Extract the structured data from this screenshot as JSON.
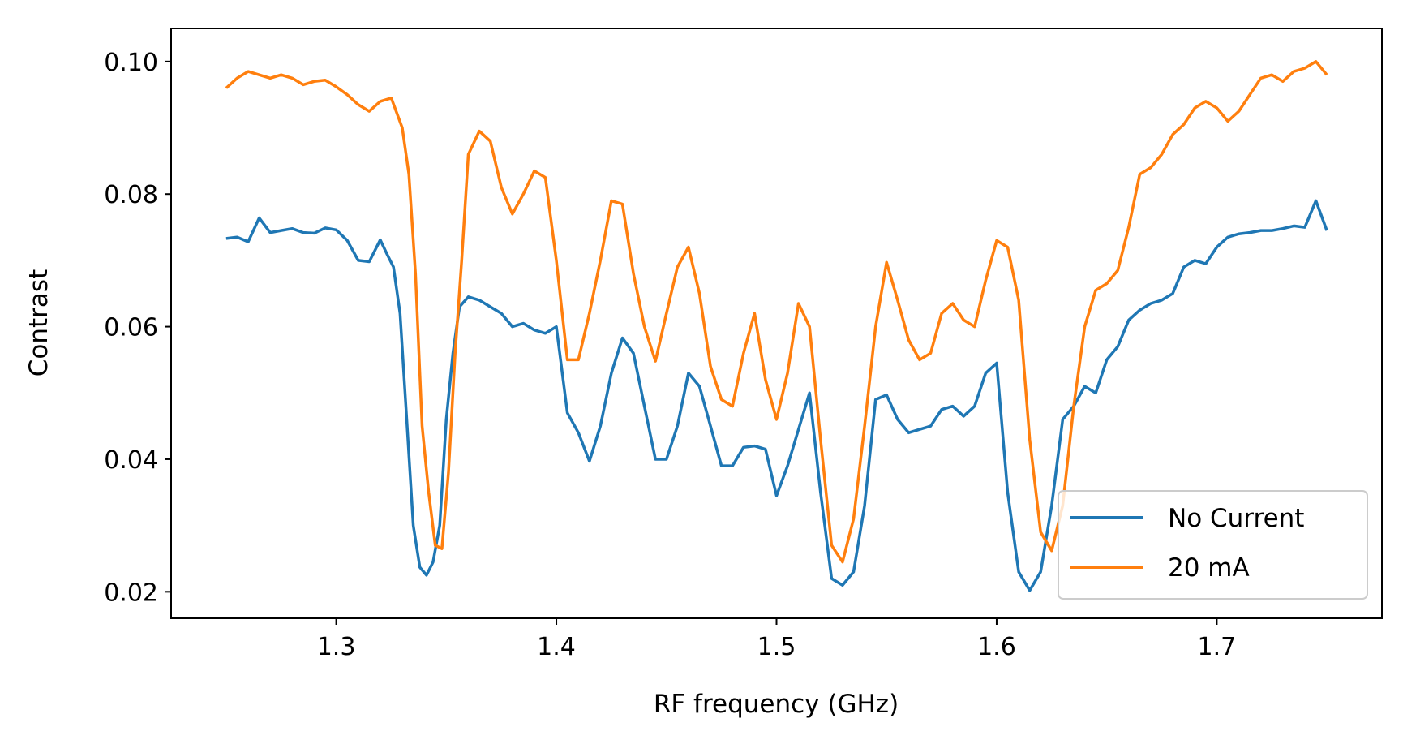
{
  "chart_data": {
    "type": "line",
    "xlabel": "RF frequency (GHz)",
    "ylabel": "Contrast",
    "xlim": [
      1.225,
      1.775
    ],
    "ylim": [
      0.016,
      0.105
    ],
    "xticks": [
      1.3,
      1.4,
      1.5,
      1.6,
      1.7
    ],
    "xtick_labels": [
      "1.3",
      "1.4",
      "1.5",
      "1.6",
      "1.7"
    ],
    "yticks": [
      0.02,
      0.04,
      0.06,
      0.08,
      0.1
    ],
    "ytick_labels": [
      "0.02",
      "0.04",
      "0.06",
      "0.08",
      "0.10"
    ],
    "grid": false,
    "legend_position": "bottom-right",
    "series": [
      {
        "name": "No Current",
        "color": "#1f77b4",
        "x": [
          1.25,
          1.255,
          1.26,
          1.265,
          1.27,
          1.275,
          1.28,
          1.285,
          1.29,
          1.295,
          1.3,
          1.305,
          1.31,
          1.315,
          1.32,
          1.323,
          1.326,
          1.329,
          1.332,
          1.335,
          1.338,
          1.341,
          1.344,
          1.347,
          1.35,
          1.353,
          1.356,
          1.36,
          1.365,
          1.37,
          1.375,
          1.38,
          1.385,
          1.39,
          1.395,
          1.4,
          1.405,
          1.41,
          1.415,
          1.42,
          1.425,
          1.43,
          1.435,
          1.44,
          1.445,
          1.45,
          1.455,
          1.46,
          1.465,
          1.47,
          1.475,
          1.48,
          1.485,
          1.49,
          1.495,
          1.5,
          1.505,
          1.51,
          1.515,
          1.52,
          1.525,
          1.53,
          1.535,
          1.54,
          1.545,
          1.55,
          1.555,
          1.56,
          1.565,
          1.57,
          1.575,
          1.58,
          1.585,
          1.59,
          1.595,
          1.6,
          1.605,
          1.61,
          1.615,
          1.62,
          1.625,
          1.63,
          1.635,
          1.64,
          1.645,
          1.65,
          1.655,
          1.66,
          1.665,
          1.67,
          1.675,
          1.68,
          1.685,
          1.69,
          1.695,
          1.7,
          1.705,
          1.71,
          1.715,
          1.72,
          1.725,
          1.73,
          1.735,
          1.74,
          1.745,
          1.75
        ],
        "y": [
          0.0733,
          0.0735,
          0.0728,
          0.0764,
          0.0742,
          0.0745,
          0.0748,
          0.0742,
          0.0741,
          0.0749,
          0.0746,
          0.073,
          0.07,
          0.0698,
          0.0731,
          0.071,
          0.069,
          0.062,
          0.046,
          0.03,
          0.0237,
          0.0225,
          0.0245,
          0.03,
          0.046,
          0.056,
          0.063,
          0.0645,
          0.064,
          0.063,
          0.062,
          0.06,
          0.0605,
          0.0595,
          0.059,
          0.06,
          0.047,
          0.044,
          0.0397,
          0.045,
          0.053,
          0.0583,
          0.056,
          0.048,
          0.04,
          0.04,
          0.045,
          0.053,
          0.051,
          0.045,
          0.039,
          0.039,
          0.0418,
          0.042,
          0.0415,
          0.0345,
          0.039,
          0.0445,
          0.05,
          0.035,
          0.022,
          0.021,
          0.023,
          0.033,
          0.049,
          0.0497,
          0.046,
          0.044,
          0.0445,
          0.045,
          0.0475,
          0.048,
          0.0465,
          0.048,
          0.053,
          0.0545,
          0.035,
          0.023,
          0.0202,
          0.023,
          0.033,
          0.046,
          0.048,
          0.051,
          0.05,
          0.055,
          0.057,
          0.061,
          0.0625,
          0.0635,
          0.064,
          0.065,
          0.069,
          0.07,
          0.0695,
          0.072,
          0.0735,
          0.074,
          0.0742,
          0.0745,
          0.0745,
          0.0748,
          0.0752,
          0.075,
          0.079,
          0.0745
        ]
      },
      {
        "name": "20 mA",
        "color": "#ff7f0e",
        "x": [
          1.25,
          1.255,
          1.26,
          1.265,
          1.27,
          1.275,
          1.28,
          1.285,
          1.29,
          1.295,
          1.3,
          1.305,
          1.31,
          1.315,
          1.32,
          1.325,
          1.33,
          1.333,
          1.336,
          1.339,
          1.342,
          1.345,
          1.348,
          1.351,
          1.354,
          1.357,
          1.36,
          1.365,
          1.37,
          1.375,
          1.38,
          1.385,
          1.39,
          1.395,
          1.4,
          1.405,
          1.41,
          1.415,
          1.42,
          1.425,
          1.43,
          1.435,
          1.44,
          1.445,
          1.45,
          1.455,
          1.46,
          1.465,
          1.47,
          1.475,
          1.48,
          1.485,
          1.49,
          1.495,
          1.5,
          1.505,
          1.51,
          1.515,
          1.52,
          1.525,
          1.53,
          1.535,
          1.54,
          1.545,
          1.55,
          1.555,
          1.56,
          1.565,
          1.57,
          1.575,
          1.58,
          1.585,
          1.59,
          1.595,
          1.6,
          1.605,
          1.61,
          1.615,
          1.62,
          1.625,
          1.63,
          1.635,
          1.64,
          1.645,
          1.65,
          1.655,
          1.66,
          1.665,
          1.67,
          1.675,
          1.68,
          1.685,
          1.69,
          1.695,
          1.7,
          1.705,
          1.71,
          1.715,
          1.72,
          1.725,
          1.73,
          1.735,
          1.74,
          1.745,
          1.75
        ],
        "y": [
          0.096,
          0.0975,
          0.0985,
          0.098,
          0.0975,
          0.098,
          0.0975,
          0.0965,
          0.097,
          0.0972,
          0.0962,
          0.095,
          0.0935,
          0.0925,
          0.094,
          0.0945,
          0.09,
          0.083,
          0.068,
          0.045,
          0.035,
          0.027,
          0.0265,
          0.038,
          0.056,
          0.07,
          0.086,
          0.0895,
          0.088,
          0.081,
          0.077,
          0.08,
          0.0835,
          0.0825,
          0.07,
          0.055,
          0.055,
          0.062,
          0.07,
          0.079,
          0.0785,
          0.068,
          0.06,
          0.0548,
          0.062,
          0.069,
          0.072,
          0.065,
          0.054,
          0.049,
          0.048,
          0.056,
          0.062,
          0.052,
          0.046,
          0.053,
          0.0635,
          0.06,
          0.043,
          0.027,
          0.0245,
          0.031,
          0.045,
          0.06,
          0.0697,
          0.064,
          0.058,
          0.055,
          0.056,
          0.062,
          0.0635,
          0.061,
          0.06,
          0.067,
          0.073,
          0.072,
          0.064,
          0.043,
          0.029,
          0.0262,
          0.033,
          0.048,
          0.06,
          0.0655,
          0.0665,
          0.0685,
          0.075,
          0.083,
          0.084,
          0.086,
          0.089,
          0.0905,
          0.093,
          0.094,
          0.093,
          0.091,
          0.0925,
          0.095,
          0.0975,
          0.098,
          0.097,
          0.0985,
          0.099,
          0.1,
          0.098
        ]
      }
    ]
  }
}
